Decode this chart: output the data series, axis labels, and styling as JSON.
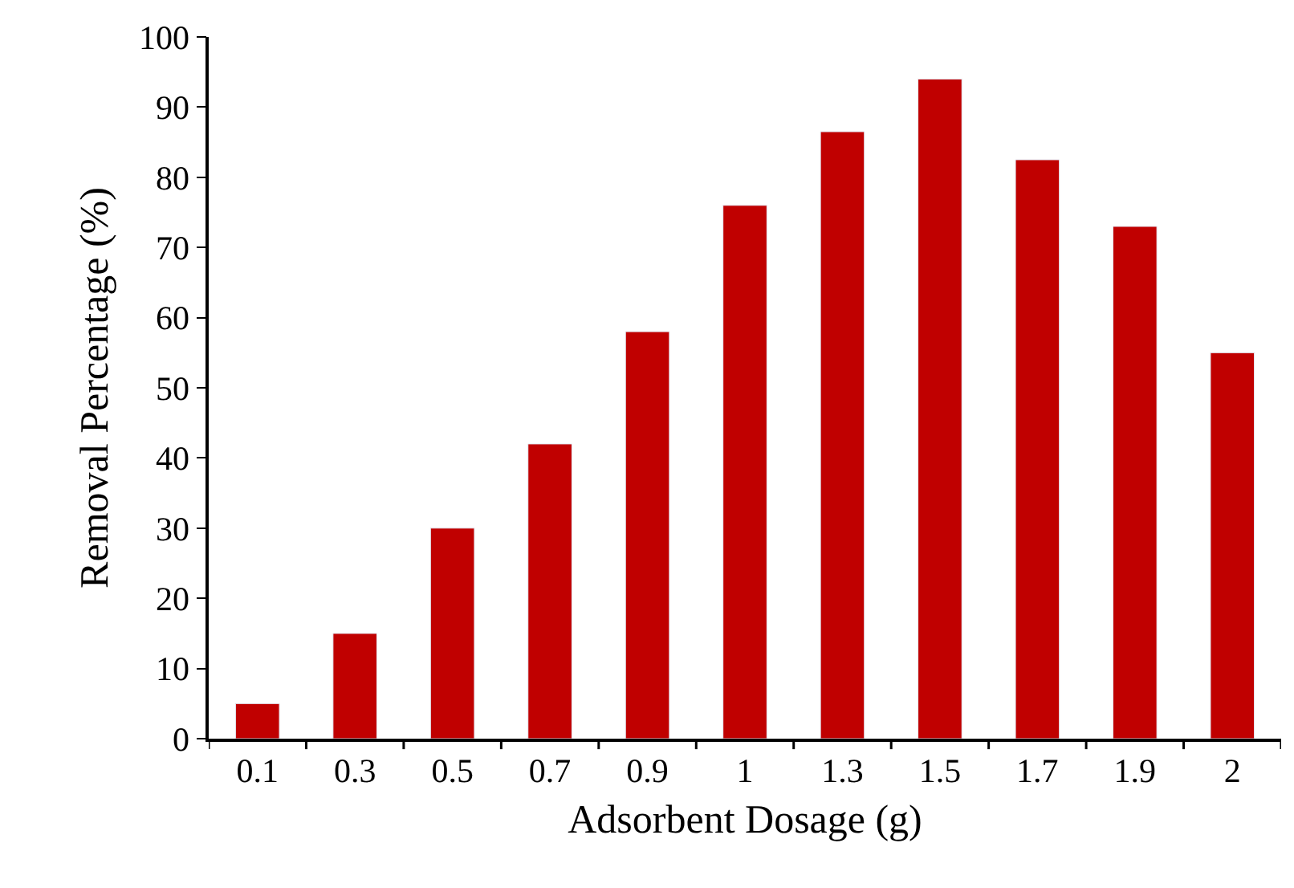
{
  "chart_data": {
    "type": "bar",
    "xlabel": "Adsorbent Dosage (g)",
    "ylabel": "Removal Percentage (%)",
    "categories": [
      "0.1",
      "0.3",
      "0.5",
      "0.7",
      "0.9",
      "1",
      "1.3",
      "1.5",
      "1.7",
      "1.9",
      "2"
    ],
    "values": [
      5,
      15,
      30,
      42,
      58,
      76,
      86.5,
      94,
      82.5,
      73,
      55
    ],
    "color": "#c00000",
    "ylim": [
      0,
      100
    ],
    "yticks": [
      0,
      10,
      20,
      30,
      40,
      50,
      60,
      70,
      80,
      90,
      100
    ]
  }
}
